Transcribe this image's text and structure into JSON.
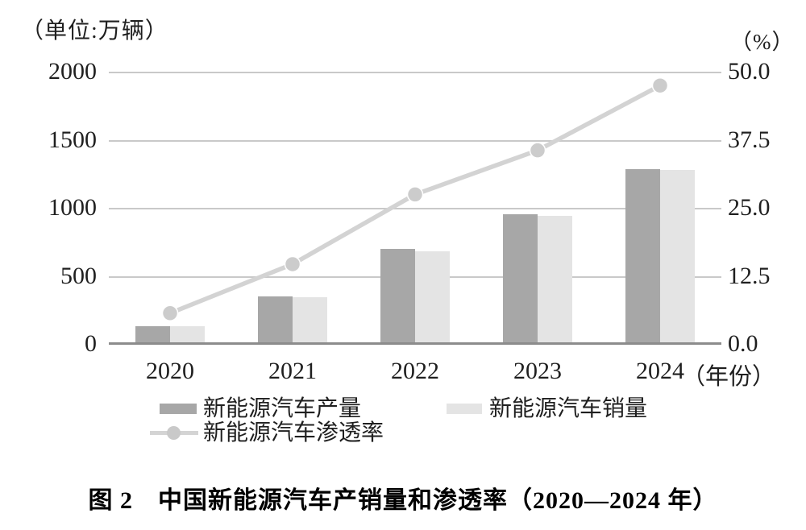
{
  "caption": "图 2　中国新能源汽车产销量和渗透率（2020—2024 年）",
  "colors": {
    "bar_production": "#a7a7a7",
    "bar_sales": "#e4e4e4",
    "line": "#d3d3d3",
    "dot_fill": "#cccccc",
    "dot_stroke": "#ffffff",
    "grid": "#c9c9c9",
    "axis_line": "#8c8c8c",
    "text": "#1f1f1f"
  },
  "chart_data": {
    "type": "combo-bar-line",
    "title": "图 2　中国新能源汽车产销量和渗透率（2020—2024 年）",
    "categories": [
      "2020",
      "2021",
      "2022",
      "2023",
      "2024"
    ],
    "series": [
      {
        "name": "新能源汽车产量",
        "type": "bar",
        "axis": "left",
        "color": "#a7a7a7",
        "values": [
          136.6,
          354.5,
          705.8,
          958.7,
          1288.8
        ]
      },
      {
        "name": "新能源汽车销量",
        "type": "bar",
        "axis": "left",
        "color": "#e4e4e4",
        "values": [
          136.7,
          352.1,
          688.7,
          949.5,
          1286.6
        ]
      },
      {
        "name": "新能源汽车渗透率",
        "type": "line",
        "axis": "right",
        "color": "#d3d3d3",
        "values": [
          5.8,
          14.8,
          27.6,
          35.7,
          47.6
        ]
      }
    ],
    "left_axis": {
      "title": "（单位:万辆）",
      "range": [
        0,
        2000
      ],
      "ticks": [
        0,
        500,
        1000,
        1500,
        2000
      ],
      "tick_labels": [
        "0",
        "500",
        "1000",
        "1500",
        "2000"
      ]
    },
    "right_axis": {
      "title": "（%）",
      "range": [
        0,
        50
      ],
      "ticks": [
        0,
        12.5,
        25,
        37.5,
        50
      ],
      "tick_labels": [
        "0.0",
        "12.5",
        "25.0",
        "37.5",
        "50.0"
      ]
    },
    "x_axis": {
      "suffix": "（年份）"
    },
    "grid": true,
    "legend_position": "bottom"
  }
}
